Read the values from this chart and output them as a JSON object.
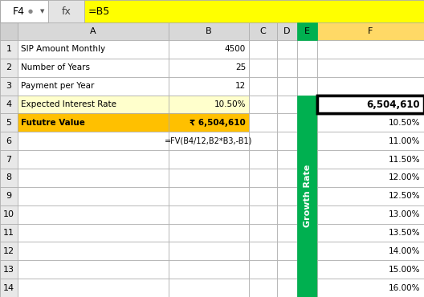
{
  "cell_ref": "F4",
  "formula_text": "=B5",
  "formula_bg": "#FFFF00",
  "col_header_labels": [
    "",
    "A",
    "B",
    "C",
    "D",
    "E",
    "F"
  ],
  "col_header_bgs": [
    "#D0D0D0",
    "#D8D8D8",
    "#D8D8D8",
    "#D8D8D8",
    "#D8D8D8",
    "#D8D8D8",
    "#FFD966"
  ],
  "row_data": [
    {
      "num": 1,
      "A": "SIP Amount Monthly",
      "B": "4500",
      "A_bg": "#FFFFFF",
      "B_bg": "#FFFFFF",
      "bold": false
    },
    {
      "num": 2,
      "A": "Number of Years",
      "B": "25",
      "A_bg": "#FFFFFF",
      "B_bg": "#FFFFFF",
      "bold": false
    },
    {
      "num": 3,
      "A": "Payment per Year",
      "B": "12",
      "A_bg": "#FFFFFF",
      "B_bg": "#FFFFFF",
      "bold": false
    },
    {
      "num": 4,
      "A": "Expected Interest Rate",
      "B": "10.50%",
      "A_bg": "#FFFFCC",
      "B_bg": "#FFFFCC",
      "bold": false
    },
    {
      "num": 5,
      "A": "Fututre Value",
      "B": "₹ 6,504,610",
      "A_bg": "#FFC000",
      "B_bg": "#FFC000",
      "bold": true
    },
    {
      "num": 6,
      "A": "",
      "B": "=FV(B4/12,B2*B3,-B1)",
      "A_bg": "#FFFFFF",
      "B_bg": "#FFFFFF",
      "bold": false
    },
    {
      "num": 7,
      "A": "",
      "B": "",
      "A_bg": "#FFFFFF",
      "B_bg": "#FFFFFF",
      "bold": false
    },
    {
      "num": 8,
      "A": "",
      "B": "",
      "A_bg": "#FFFFFF",
      "B_bg": "#FFFFFF",
      "bold": false
    },
    {
      "num": 9,
      "A": "",
      "B": "",
      "A_bg": "#FFFFFF",
      "B_bg": "#FFFFFF",
      "bold": false
    },
    {
      "num": 10,
      "A": "",
      "B": "",
      "A_bg": "#FFFFFF",
      "B_bg": "#FFFFFF",
      "bold": false
    },
    {
      "num": 11,
      "A": "",
      "B": "",
      "A_bg": "#FFFFFF",
      "B_bg": "#FFFFFF",
      "bold": false
    },
    {
      "num": 12,
      "A": "",
      "B": "",
      "A_bg": "#FFFFFF",
      "B_bg": "#FFFFFF",
      "bold": false
    },
    {
      "num": 13,
      "A": "",
      "B": "",
      "A_bg": "#FFFFFF",
      "B_bg": "#FFFFFF",
      "bold": false
    },
    {
      "num": 14,
      "A": "",
      "B": "",
      "A_bg": "#FFFFFF",
      "B_bg": "#FFFFFF",
      "bold": false
    }
  ],
  "F4_value": "6,504,610",
  "F_rates": [
    "10.50%",
    "11.00%",
    "11.50%",
    "12.00%",
    "12.50%",
    "13.00%",
    "13.50%",
    "14.00%",
    "15.00%",
    "16.00%"
  ],
  "green_color": "#00B050",
  "green_label": "Growth Rate",
  "fig_bg": "#C0C0C0",
  "title_bar_bg": "#E4E4E4",
  "col_header_bg": "#D8D8D8",
  "row_num_bg": "#E8E8E8",
  "cell_white": "#FFFFFF",
  "border_col": "#B0B0B0",
  "thick_border": "#000000"
}
